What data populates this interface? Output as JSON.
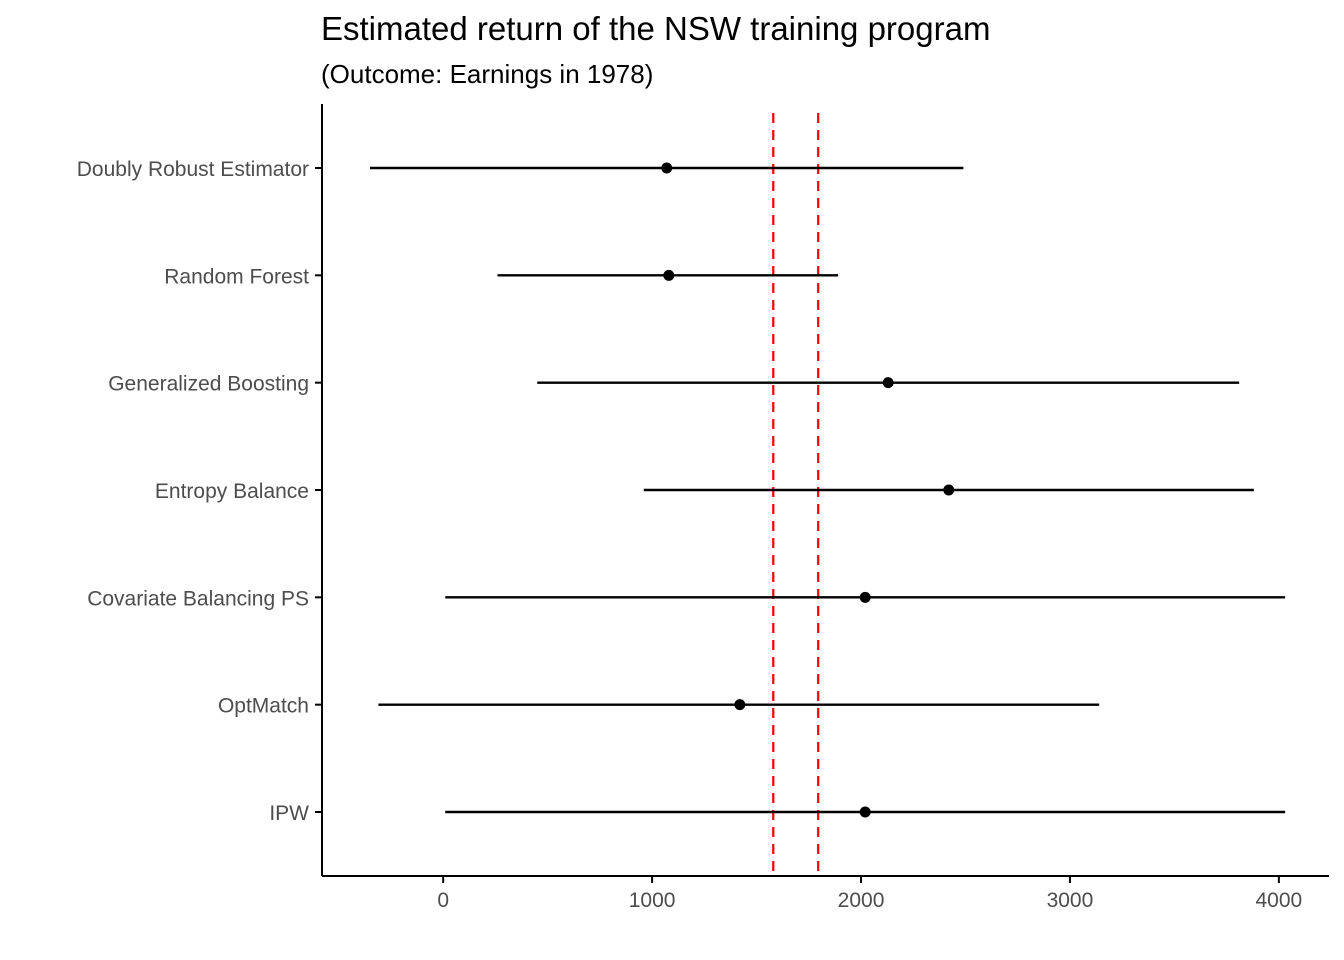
{
  "chart_data": {
    "type": "scatter",
    "subtype": "coefficient-plot-with-intervals",
    "title": "Estimated return of the NSW training program",
    "subtitle": "(Outcome: Earnings in 1978)",
    "xlabel": "",
    "ylabel": "",
    "xlim": [
      -580,
      4240
    ],
    "xticks": [
      0,
      1000,
      2000,
      3000,
      4000
    ],
    "grid": false,
    "legend": "none",
    "categories": [
      "Doubly Robust Estimator",
      "Random Forest",
      "Generalized Boosting",
      "Entropy Balance",
      "Covariate Balancing PS",
      "OptMatch",
      "IPW"
    ],
    "series": [
      {
        "estimate": [
          1070,
          1080,
          2130,
          2420,
          2020,
          1420,
          2020
        ],
        "lower": [
          -350,
          260,
          450,
          960,
          10,
          -310,
          10
        ],
        "upper": [
          2490,
          1890,
          3810,
          3880,
          4030,
          3140,
          4030
        ]
      }
    ],
    "reference_lines": [
      1580,
      1795
    ],
    "colors": {
      "point": "#000000",
      "interval": "#000000",
      "reference": "#ff0000",
      "axis": "#000000",
      "tick_label": "#4d4d4d"
    }
  }
}
